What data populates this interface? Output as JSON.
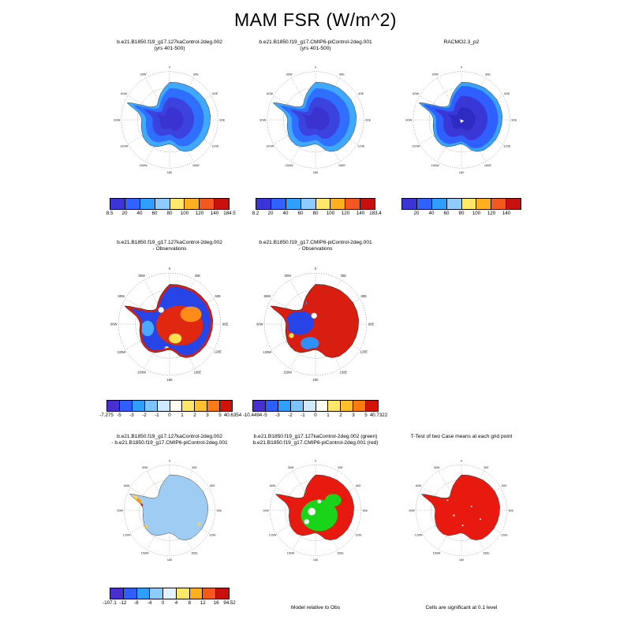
{
  "page": {
    "title": "MAM FSR (W/m^2)"
  },
  "map": {
    "lon_labels": [
      "0",
      "30E",
      "60E",
      "90E",
      "120E",
      "150E",
      "180",
      "150W",
      "120W",
      "90W",
      "60W",
      "30W"
    ]
  },
  "panels": [
    {
      "title_lines": [
        "b.e21.B1850.f19_g17.127kaControl-2deg.002",
        "(yrs 401-500)"
      ],
      "map_style": "clim",
      "map_palette": {
        "outer": "#3fa9ff",
        "mid": "#2f6fff",
        "inner": "#3c42dd",
        "core": "#3a33cf"
      },
      "colorbar": {
        "label_mode": "edges",
        "colors": [
          "#3b35d8",
          "#2f62ff",
          "#2f9fff",
          "#8ecbff",
          "#ffe769",
          "#ffb01e",
          "#f4581e",
          "#c8100e"
        ],
        "labels": [
          "8.5",
          "20",
          "40",
          "60",
          "80",
          "100",
          "120",
          "140",
          "184.5"
        ]
      }
    },
    {
      "title_lines": [
        "b.e21.B1850.f19_g17.CMIP6-piControl-2deg.001",
        "(yrs 401-500)"
      ],
      "map_style": "clim",
      "map_palette": {
        "outer": "#3fa9ff",
        "mid": "#2f6fff",
        "inner": "#3c42dd",
        "core": "#3a33cf"
      },
      "colorbar": {
        "label_mode": "edges",
        "colors": [
          "#3b35d8",
          "#2f62ff",
          "#2f9fff",
          "#8ecbff",
          "#ffe769",
          "#ffb01e",
          "#f4581e",
          "#c8100e"
        ],
        "labels": [
          "8.2",
          "20",
          "40",
          "60",
          "80",
          "100",
          "120",
          "140",
          "183.4"
        ]
      }
    },
    {
      "title_lines": [
        "RACMO2.3_p2"
      ],
      "map_style": "clim2",
      "map_palette": {
        "outer": "#36a3ff",
        "mid": "#2f5fff",
        "inner": "#3937d6",
        "core": "#2e2bc2"
      },
      "colorbar": {
        "label_mode": "interior",
        "colors": [
          "#3b35d8",
          "#2f62ff",
          "#2f9fff",
          "#8ecbff",
          "#ffe769",
          "#ffb01e",
          "#f4581e",
          "#c8100e"
        ],
        "labels": [
          "20",
          "40",
          "60",
          "80",
          "100",
          "120",
          "140"
        ]
      }
    },
    {
      "title_lines": [
        "b.e21.B1850.f19_g17.127kaControl-2deg.002",
        "- Observations"
      ],
      "map_style": "diff-127ka-obs",
      "map_palette": {
        "base": "#2744e6",
        "warm": "#e02810",
        "warm2": "#ff8c1a",
        "accent": "#ffe04d",
        "light": "#49a8ff",
        "rim": "#d81e10"
      },
      "colorbar": {
        "label_mode": "edges",
        "colors": [
          "#4a2fd0",
          "#2f5eff",
          "#2f9fff",
          "#7cc4ff",
          "#cfe9ff",
          "#fffef0",
          "#ffe769",
          "#ffc02e",
          "#ff7a14",
          "#d01408"
        ],
        "labels": [
          "-7.275",
          "-5",
          "-3",
          "-2",
          "-1",
          "0",
          "1",
          "2",
          "3",
          "5",
          "40.6354"
        ]
      }
    },
    {
      "title_lines": [
        "b.e21.B1850.f19_g17.CMIP6-piControl-2deg.001",
        "- Observations"
      ],
      "map_style": "diff-pi-obs",
      "map_palette": {
        "base": "#d81e10",
        "cool": "#2744e6",
        "cool2": "#2f8fff",
        "accent": "#ffe04d",
        "rim": "#d81e10"
      },
      "colorbar": {
        "label_mode": "edges",
        "colors": [
          "#4a2fd0",
          "#2f5eff",
          "#2f9fff",
          "#7cc4ff",
          "#cfe9ff",
          "#fffef0",
          "#ffe769",
          "#ffc02e",
          "#ff7a14",
          "#d01408"
        ],
        "labels": [
          "-10.4494",
          "-5",
          "-3",
          "-2",
          "-1",
          "0",
          "1",
          "2",
          "3",
          "5",
          "40.7322"
        ]
      }
    },
    {
      "title_lines": [
        "b.e21.B1850.f19_g17.127kaControl-2deg.002",
        "- b.e21.B1850.f19_g17.CMIP6-piControl-2deg.001"
      ],
      "map_style": "diff-127ka-pi",
      "map_palette": {
        "base": "#9fccf2",
        "spot": "#ff9a14",
        "spot2": "#ffd24d",
        "warm": "#e02810"
      },
      "colorbar": {
        "label_mode": "edges",
        "colors": [
          "#4a2fd0",
          "#2f5eff",
          "#2f9fff",
          "#8ecbff",
          "#e2f2ff",
          "#ffe769",
          "#ffb01e",
          "#f4581e",
          "#c8100e"
        ],
        "labels": [
          "-107.1",
          "-12",
          "-8",
          "-4",
          "0",
          "4",
          "8",
          "12",
          "16",
          "94.52"
        ]
      }
    },
    {
      "title_lines": [
        "b.e21.B1850.f19_g17.127kaControl-2deg.002 (green)",
        "b.e21.B1850.f19_g17.CMIP6-piControl-2deg.001 (red)"
      ],
      "map_style": "rg",
      "map_palette": {
        "base": "#e8190f",
        "green": "#1ad41a",
        "hole": "#ffffff"
      },
      "caption": "Model relative to Obs"
    },
    {
      "title_lines": [
        "T-Test of two Case means at each grid point"
      ],
      "map_style": "ttest",
      "map_palette": {
        "base": "#e8190f",
        "hole": "#ffffff"
      },
      "caption": "Cells are significant at 0.1 level"
    }
  ],
  "chart_data": {
    "type": "heatmap",
    "title": "MAM FSR (W/m^2)",
    "variable": "FSR",
    "season": "MAM",
    "units": "W/m^2",
    "projection": "south polar stereographic (Antarctica)",
    "panels": [
      {
        "panel": 1,
        "title": "b.e21.B1850.f19_g17.127kaControl-2deg.002 (yrs 401-500)",
        "colorbar_ticks": [
          8.5,
          20,
          40,
          60,
          80,
          100,
          120,
          140,
          184.5
        ]
      },
      {
        "panel": 2,
        "title": "b.e21.B1850.f19_g17.CMIP6-piControl-2deg.001 (yrs 401-500)",
        "colorbar_ticks": [
          8.2,
          20,
          40,
          60,
          80,
          100,
          120,
          140,
          183.4
        ]
      },
      {
        "panel": 3,
        "title": "RACMO2.3_p2",
        "colorbar_ticks": [
          20,
          40,
          60,
          80,
          100,
          120,
          140
        ]
      },
      {
        "panel": 4,
        "title": "b.e21.B1850.f19_g17.127kaControl-2deg.002 - Observations",
        "colorbar_ticks": [
          -7.275,
          -5,
          -3,
          -2,
          -1,
          0,
          1,
          2,
          3,
          5,
          40.6354
        ]
      },
      {
        "panel": 5,
        "title": "b.e21.B1850.f19_g17.CMIP6-piControl-2deg.001 - Observations",
        "colorbar_ticks": [
          -10.4494,
          -5,
          -3,
          -2,
          -1,
          0,
          1,
          2,
          3,
          5,
          40.7322
        ]
      },
      {
        "panel": 6,
        "title": "b.e21.B1850.f19_g17.127kaControl-2deg.002 - b.e21.B1850.f19_g17.CMIP6-piControl-2deg.001",
        "colorbar_ticks": [
          -107.1,
          -12,
          -8,
          -4,
          0,
          4,
          8,
          12,
          16,
          94.52
        ]
      },
      {
        "panel": 7,
        "title": "b.e21.B1850.f19_g17.127kaControl-2deg.002 (green) / b.e21.B1850.f19_g17.CMIP6-piControl-2deg.001 (red)",
        "note": "Model relative to Obs"
      },
      {
        "panel": 8,
        "title": "T-Test of two Case means at each grid point",
        "note": "Cells are significant at 0.1 level"
      }
    ]
  }
}
